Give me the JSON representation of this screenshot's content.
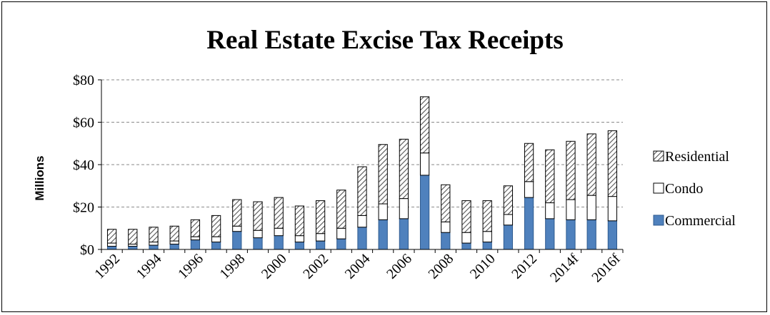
{
  "chart_data": {
    "type": "bar",
    "stacked": true,
    "title": "Real Estate Excise Tax Receipts",
    "ylabel": "Millions",
    "xlabel": "",
    "ylim": [
      0,
      80
    ],
    "yticks": [
      "$0",
      "$20",
      "$40",
      "$60",
      "$80"
    ],
    "ytick_values": [
      0,
      20,
      40,
      60,
      80
    ],
    "grid": true,
    "legend_position": "right",
    "categories": [
      "1992",
      "1993",
      "1994",
      "1995",
      "1996",
      "1997",
      "1998",
      "1999",
      "2000",
      "2001",
      "2002",
      "2003",
      "2004",
      "2005",
      "2006",
      "2007",
      "2008",
      "2009",
      "2010",
      "2011",
      "2012",
      "2013",
      "2014f",
      "2015f",
      "2016f"
    ],
    "xtick_labels": [
      "1992",
      "",
      "1994",
      "",
      "1996",
      "",
      "1998",
      "",
      "2000",
      "",
      "2002",
      "",
      "2004",
      "",
      "2006",
      "",
      "2008",
      "",
      "2010",
      "",
      "2012",
      "",
      "2014f",
      "",
      "2016f"
    ],
    "series": [
      {
        "name": "Commercial",
        "color": "#4F81BD",
        "pattern": "solid",
        "values": [
          1.5,
          1.5,
          2,
          2.5,
          4.5,
          3.5,
          8.5,
          5.5,
          6.5,
          3.5,
          4,
          5,
          10.5,
          14,
          14.5,
          35,
          8,
          3,
          3.5,
          11.5,
          24.5,
          14.5,
          14,
          14,
          13.5
        ]
      },
      {
        "name": "Condo",
        "color": "#FFFFFF",
        "pattern": "none",
        "values": [
          1.5,
          1,
          1.5,
          1.5,
          1.5,
          2.5,
          2.5,
          3.5,
          3.5,
          3,
          3.5,
          5,
          5.5,
          7.5,
          9.5,
          10.5,
          5,
          5,
          5,
          5,
          7.5,
          7.5,
          9.5,
          11.5,
          11.5
        ]
      },
      {
        "name": "Residential",
        "color": "#FFFFFF",
        "pattern": "diagonal-hatch",
        "values": [
          6.5,
          7,
          7,
          7,
          8,
          10,
          12.5,
          13.5,
          14.5,
          14,
          15.5,
          18,
          23,
          28,
          28,
          26.5,
          17.5,
          15,
          14.5,
          13.5,
          18,
          25,
          27.5,
          29,
          31
        ]
      }
    ]
  }
}
